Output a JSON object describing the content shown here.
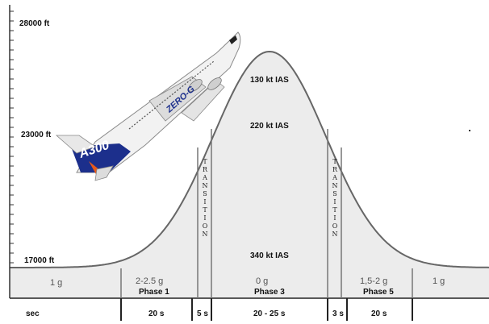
{
  "axis": {
    "altitudes": [
      "28000 ft",
      "23000 ft",
      "17000 ft"
    ],
    "time_label": "sec"
  },
  "speeds": [
    "130 kt IAS",
    "220 kt IAS",
    "340 kt IAS"
  ],
  "transition_label": "TRANSITION",
  "segments": [
    {
      "g": "1 g",
      "phase": "",
      "duration": ""
    },
    {
      "g": "2-2.5 g",
      "phase": "Phase 1",
      "duration": "20 s"
    },
    {
      "g": "",
      "phase": "",
      "duration": "5 s"
    },
    {
      "g": "0 g",
      "phase": "Phase 3",
      "duration": "20 - 25 s"
    },
    {
      "g": "",
      "phase": "",
      "duration": "3 s"
    },
    {
      "g": "1,5-2 g",
      "phase": "Phase 5",
      "duration": "20 s"
    },
    {
      "g": "1 g",
      "phase": "",
      "duration": ""
    }
  ],
  "aircraft": {
    "type_label": "A300",
    "name_label": "ZERO-G",
    "colors": {
      "body": "#f2f2f2",
      "stripe": "#1c2f8c",
      "accent": "#e85a1a"
    }
  }
}
